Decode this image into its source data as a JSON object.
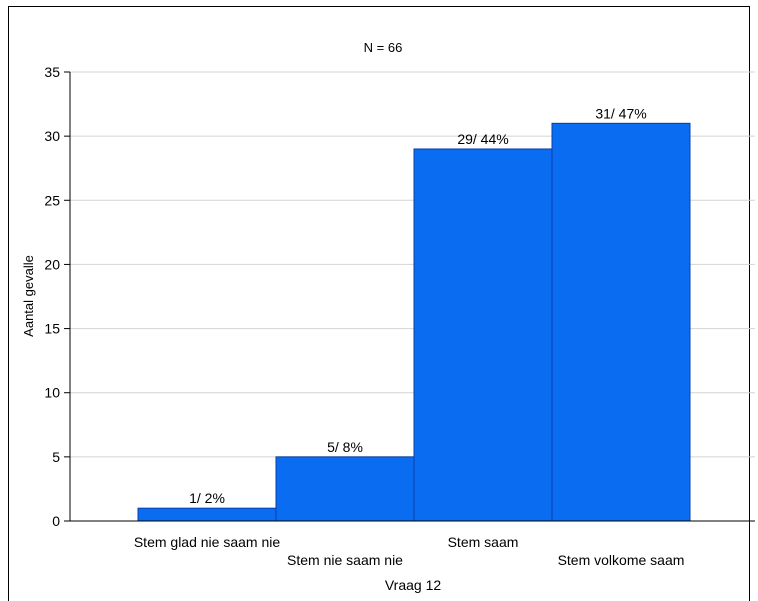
{
  "chart_data": {
    "type": "bar",
    "title": "N = 66",
    "xlabel": "Vraag 12",
    "ylabel": "Aantal gevalle",
    "categories": [
      "Stem glad nie saam nie",
      "Stem nie saam nie",
      "Stem saam",
      "Stem volkome saam"
    ],
    "values": [
      1,
      5,
      29,
      31
    ],
    "data_labels": [
      "1/ 2%",
      "5/ 8%",
      "29/ 44%",
      "31/ 47%"
    ],
    "ylim": [
      0,
      35
    ],
    "yticks": [
      0,
      5,
      10,
      15,
      20,
      25,
      30,
      35
    ],
    "grid": true,
    "bar_color": "#0a6cf0",
    "bar_edge_color": "#0a3fa8"
  }
}
